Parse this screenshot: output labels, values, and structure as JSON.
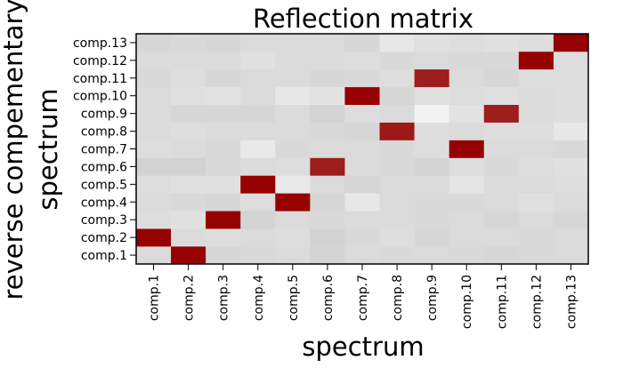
{
  "chart_data": {
    "type": "heatmap",
    "title": "Reflection matrix",
    "xlabel": "spectrum",
    "ylabel": [
      "reverse compementary",
      "spectrum"
    ],
    "x_categories": [
      "comp.1",
      "comp.2",
      "comp.3",
      "comp.4",
      "comp.5",
      "comp.6",
      "comp.7",
      "comp.8",
      "comp.9",
      "comp.10",
      "comp.11",
      "comp.12",
      "comp.13"
    ],
    "y_categories": [
      "comp.1",
      "comp.2",
      "comp.3",
      "comp.4",
      "comp.5",
      "comp.6",
      "comp.7",
      "comp.8",
      "comp.9",
      "comp.10",
      "comp.11",
      "comp.12",
      "comp.13"
    ],
    "color_scale": {
      "low": "#f2f2f2",
      "mid": "#d2d2d2",
      "high": "#960000"
    },
    "values": [
      [
        0.1,
        1.0,
        0.12,
        0.11,
        0.1,
        0.13,
        0.1,
        0.11,
        0.1,
        0.11,
        0.12,
        0.11,
        0.1
      ],
      [
        1.0,
        0.1,
        0.09,
        0.1,
        0.09,
        0.14,
        0.11,
        0.09,
        0.12,
        0.1,
        0.1,
        0.11,
        0.1
      ],
      [
        0.09,
        0.08,
        1.0,
        0.13,
        0.1,
        0.11,
        0.1,
        0.1,
        0.11,
        0.1,
        0.12,
        0.1,
        0.12
      ],
      [
        0.1,
        0.11,
        0.12,
        0.09,
        1.0,
        0.12,
        0.05,
        0.1,
        0.11,
        0.11,
        0.1,
        0.08,
        0.1
      ],
      [
        0.09,
        0.08,
        0.08,
        1.0,
        0.04,
        0.1,
        0.12,
        0.1,
        0.1,
        0.06,
        0.1,
        0.1,
        0.09
      ],
      [
        0.14,
        0.14,
        0.11,
        0.1,
        0.09,
        0.88,
        0.1,
        0.11,
        0.13,
        0.09,
        0.11,
        0.09,
        0.08
      ],
      [
        0.09,
        0.1,
        0.11,
        0.04,
        0.11,
        0.1,
        0.1,
        0.11,
        0.09,
        1.0,
        0.1,
        0.1,
        0.11
      ],
      [
        0.1,
        0.09,
        0.1,
        0.1,
        0.1,
        0.11,
        0.12,
        0.9,
        0.09,
        0.1,
        0.09,
        0.09,
        0.05
      ],
      [
        0.1,
        0.12,
        0.12,
        0.12,
        0.1,
        0.13,
        0.09,
        0.1,
        0.0,
        0.07,
        0.88,
        0.1,
        0.09
      ],
      [
        0.1,
        0.08,
        0.07,
        0.1,
        0.05,
        0.07,
        1.0,
        0.12,
        0.08,
        0.09,
        0.08,
        0.1,
        0.09
      ],
      [
        0.11,
        0.09,
        0.12,
        0.1,
        0.1,
        0.12,
        0.11,
        0.09,
        0.88,
        0.1,
        0.12,
        0.09,
        0.09
      ],
      [
        0.1,
        0.1,
        0.1,
        0.08,
        0.1,
        0.1,
        0.09,
        0.11,
        0.1,
        0.11,
        0.11,
        1.0,
        0.09
      ],
      [
        0.12,
        0.11,
        0.12,
        0.1,
        0.1,
        0.1,
        0.12,
        0.05,
        0.08,
        0.09,
        0.08,
        0.09,
        1.0
      ]
    ],
    "grid": false,
    "legend": "none"
  }
}
